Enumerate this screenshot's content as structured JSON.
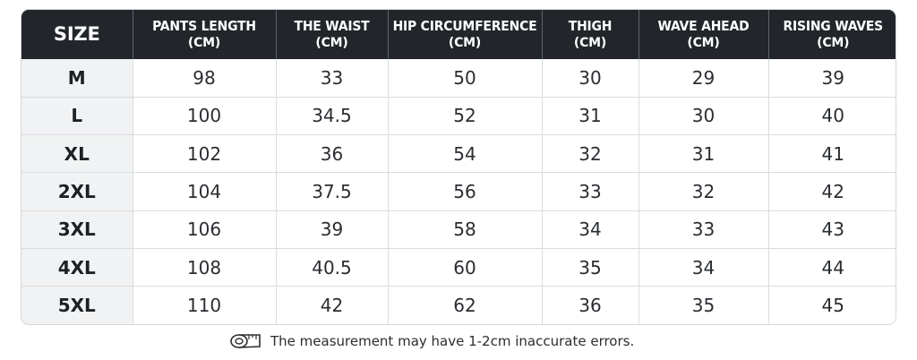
{
  "table": {
    "headers": [
      {
        "main": "SIZE",
        "unit": ""
      },
      {
        "main": "PANTS LENGTH",
        "unit": "(CM)"
      },
      {
        "main": "THE WAIST",
        "unit": "(CM)"
      },
      {
        "main": "HIP CIRCUMFERENCE",
        "unit": "(CM)"
      },
      {
        "main": "THIGH",
        "unit": "(CM)"
      },
      {
        "main": "WAVE AHEAD",
        "unit": "(CM)"
      },
      {
        "main": "RISING WAVES",
        "unit": "(CM)"
      }
    ],
    "rows": [
      [
        "M",
        "98",
        "33",
        "50",
        "30",
        "29",
        "39"
      ],
      [
        "L",
        "100",
        "34.5",
        "52",
        "31",
        "30",
        "40"
      ],
      [
        "XL",
        "102",
        "36",
        "54",
        "32",
        "31",
        "41"
      ],
      [
        "2XL",
        "104",
        "37.5",
        "56",
        "33",
        "32",
        "42"
      ],
      [
        "3XL",
        "106",
        "39",
        "58",
        "34",
        "33",
        "43"
      ],
      [
        "4XL",
        "108",
        "40.5",
        "60",
        "35",
        "34",
        "44"
      ],
      [
        "5XL",
        "110",
        "42",
        "62",
        "36",
        "35",
        "45"
      ]
    ]
  },
  "note": {
    "icon": "measuring-tape-icon",
    "text": "The measurement may have 1-2cm inaccurate errors."
  },
  "colors": {
    "header_bg": "#22262b",
    "size_col_bg": "#f1f2f3",
    "border": "#d9dcdf"
  }
}
